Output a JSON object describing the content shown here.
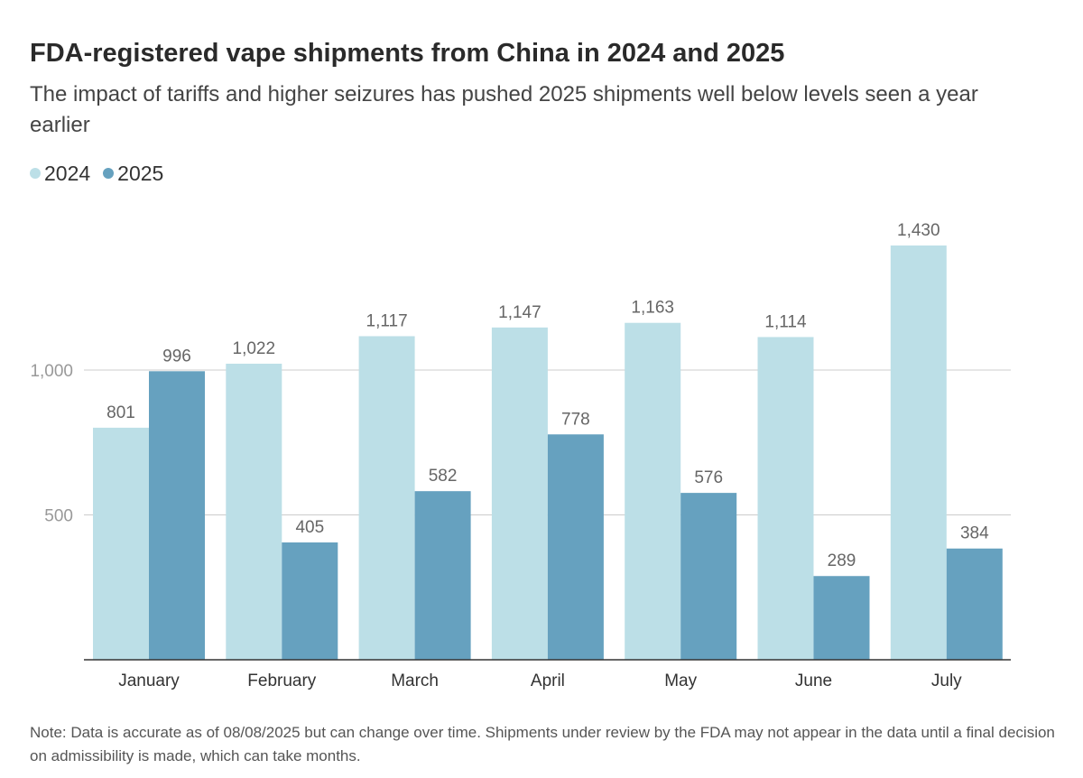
{
  "title": "FDA-registered vape shipments from China in 2024 and 2025",
  "subtitle": "The impact of tariffs and higher seizures has pushed 2025 shipments well below levels seen a year earlier",
  "footnote": "Note: Data is accurate as of 08/08/2025 but can change over time. Shipments under review by the FDA may not appear in the data until a final decision on admissibility is made, which can take months.",
  "colors": {
    "series_2024": "#bcdfe7",
    "series_2025": "#66a1bf",
    "grid": "#cccccc",
    "axis": "#333333",
    "tick_text": "#999999",
    "label_text": "#666666"
  },
  "chart_data": {
    "type": "bar",
    "categories": [
      "January",
      "February",
      "March",
      "April",
      "May",
      "June",
      "July"
    ],
    "series": [
      {
        "name": "2024",
        "values": [
          801,
          1022,
          1117,
          1147,
          1163,
          1114,
          1430
        ],
        "labels": [
          "801",
          "1,022",
          "1,117",
          "1,147",
          "1,163",
          "1,114",
          "1,430"
        ]
      },
      {
        "name": "2025",
        "values": [
          996,
          405,
          582,
          778,
          576,
          289,
          384
        ],
        "labels": [
          "996",
          "405",
          "582",
          "778",
          "576",
          "289",
          "384"
        ]
      }
    ],
    "yticks": [
      500,
      1000
    ],
    "ytick_labels": [
      "500",
      "1,000"
    ],
    "ylim": [
      0,
      1430
    ],
    "xlabel": "",
    "ylabel": "",
    "grid": true,
    "legend": "top-left"
  }
}
